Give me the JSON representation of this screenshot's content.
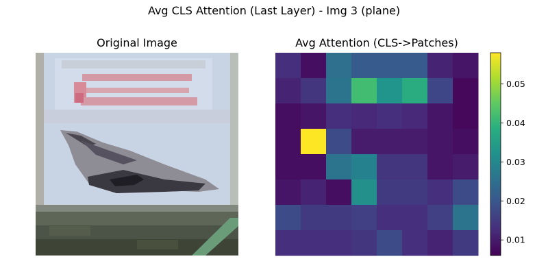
{
  "figure": {
    "title": "Avg CLS Attention (Last Layer) - Img 3 (plane)"
  },
  "panels": {
    "image_title": "Original Image",
    "heatmap_title": "Avg Attention (CLS->Patches)"
  },
  "chart_data": [
    {
      "type": "image",
      "title": "Original Image",
      "description_of_content_shown": "pixelated photo of a plane",
      "resolution": [
        32,
        32
      ]
    },
    {
      "type": "heatmap",
      "title": "Avg Attention (CLS->Patches)",
      "colormap": "viridis",
      "rows": 8,
      "cols": 8,
      "values": [
        [
          0.013,
          0.008,
          0.025,
          0.021,
          0.021,
          0.021,
          0.011,
          0.009
        ],
        [
          0.011,
          0.014,
          0.026,
          0.042,
          0.033,
          0.038,
          0.017,
          0.007
        ],
        [
          0.008,
          0.009,
          0.013,
          0.012,
          0.013,
          0.012,
          0.009,
          0.007
        ],
        [
          0.008,
          0.058,
          0.018,
          0.01,
          0.01,
          0.01,
          0.009,
          0.008
        ],
        [
          0.008,
          0.008,
          0.026,
          0.029,
          0.014,
          0.014,
          0.009,
          0.01
        ],
        [
          0.009,
          0.011,
          0.008,
          0.032,
          0.015,
          0.015,
          0.013,
          0.018
        ],
        [
          0.018,
          0.015,
          0.015,
          0.016,
          0.013,
          0.013,
          0.016,
          0.026
        ],
        [
          0.013,
          0.013,
          0.013,
          0.014,
          0.018,
          0.013,
          0.011,
          0.015
        ]
      ],
      "colorbar": {
        "min": 0.006,
        "max": 0.058,
        "ticks": [
          0.01,
          0.02,
          0.03,
          0.04,
          0.05
        ],
        "tick_labels": [
          "0.01",
          "0.02",
          "0.03",
          "0.04",
          "0.05"
        ]
      }
    }
  ]
}
